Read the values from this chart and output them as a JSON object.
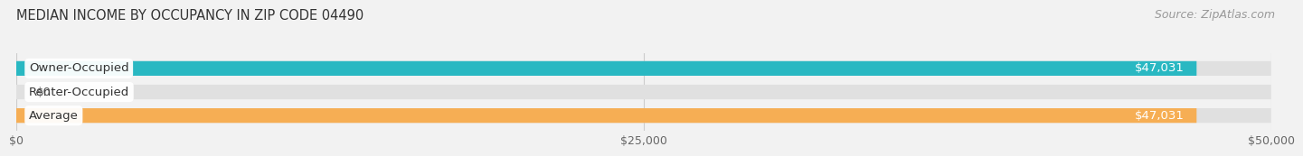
{
  "title": "MEDIAN INCOME BY OCCUPANCY IN ZIP CODE 04490",
  "source": "Source: ZipAtlas.com",
  "categories": [
    "Owner-Occupied",
    "Renter-Occupied",
    "Average"
  ],
  "values": [
    47031,
    0,
    47031
  ],
  "bar_colors": [
    "#29B8C2",
    "#C4AED4",
    "#F6AE54"
  ],
  "label_texts": [
    "$47,031",
    "$0",
    "$47,031"
  ],
  "xlim": [
    0,
    50000
  ],
  "xtick_values": [
    0,
    25000,
    50000
  ],
  "xtick_labels": [
    "$0",
    "$25,000",
    "$50,000"
  ],
  "bg_color": "#f2f2f2",
  "bar_bg_color": "#e0e0e0",
  "title_fontsize": 10.5,
  "label_fontsize": 9.5,
  "tick_fontsize": 9,
  "source_fontsize": 9,
  "bar_height": 0.62,
  "value_label_color_inside": "white",
  "value_label_color_outside": "#555555"
}
